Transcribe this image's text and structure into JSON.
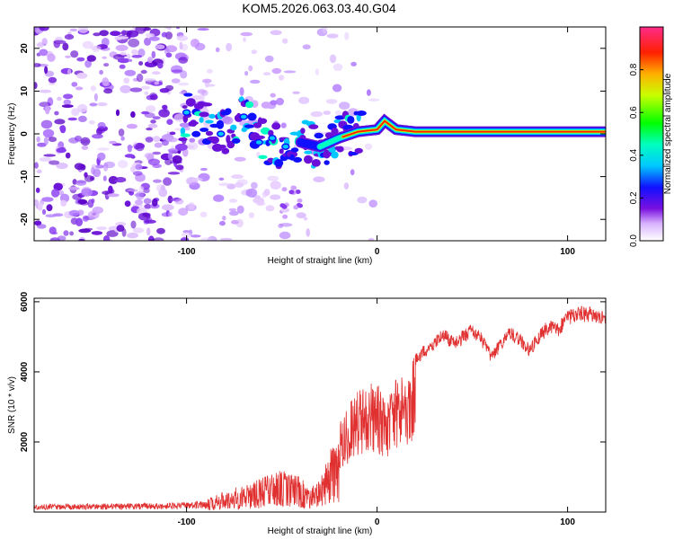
{
  "title": "KOM5.2026.063.03.40.G04",
  "chart_data": [
    {
      "type": "heatmap",
      "xlabel": "Height of straight line (km)",
      "ylabel": "Frequency (Hz)",
      "xlim": [
        -180,
        120
      ],
      "ylim": [
        -25,
        25
      ],
      "xticks": [
        -100,
        0,
        100
      ],
      "yticks": [
        -20,
        -10,
        0,
        10,
        20
      ],
      "colorbar": {
        "label": "Normalized spectral amplitude",
        "range": [
          0,
          1
        ],
        "ticks": [
          "0.0",
          "0.2",
          "0.4",
          "0.6",
          "0.8"
        ],
        "tick_values": [
          0,
          0.2,
          0.4,
          0.6,
          0.8
        ]
      },
      "signal_band": {
        "description_x_range_km": [
          -100,
          120
        ],
        "center_freq_hz": [
          [
            -100,
            5
          ],
          [
            -90,
            2
          ],
          [
            -80,
            0
          ],
          [
            -70,
            4
          ],
          [
            -60,
            -2
          ],
          [
            -50,
            -3
          ],
          [
            -40,
            -2
          ],
          [
            -30,
            -3
          ],
          [
            -20,
            -1
          ],
          [
            -10,
            0.5
          ],
          [
            0,
            1
          ],
          [
            4,
            3
          ],
          [
            10,
            1
          ],
          [
            20,
            0.5
          ],
          [
            40,
            0.5
          ],
          [
            100,
            0.5
          ],
          [
            120,
            0.5
          ]
        ],
        "peak_amplitude": 0.9
      }
    },
    {
      "type": "line",
      "xlabel": "Height of straight line (km)",
      "ylabel": "SNR (10 * v/v)",
      "xlim": [
        -180,
        120
      ],
      "ylim": [
        0,
        6100
      ],
      "xticks": [
        -100,
        0,
        100
      ],
      "yticks": [
        2000,
        4000,
        6000
      ],
      "color": "#e03030",
      "series_envelope": [
        [
          -180,
          220
        ],
        [
          -150,
          240
        ],
        [
          -120,
          250
        ],
        [
          -100,
          280
        ],
        [
          -90,
          380
        ],
        [
          -80,
          600
        ],
        [
          -70,
          800
        ],
        [
          -60,
          1000
        ],
        [
          -50,
          1200
        ],
        [
          -40,
          1000
        ],
        [
          -35,
          700
        ],
        [
          -30,
          900
        ],
        [
          -25,
          1700
        ],
        [
          -20,
          2600
        ],
        [
          -15,
          3100
        ],
        [
          -10,
          3500
        ],
        [
          -5,
          3800
        ],
        [
          0,
          3700
        ],
        [
          5,
          3300
        ],
        [
          10,
          3800
        ],
        [
          15,
          4200
        ],
        [
          20,
          4500
        ],
        [
          25,
          4800
        ],
        [
          30,
          5000
        ],
        [
          35,
          5300
        ],
        [
          40,
          5000
        ],
        [
          45,
          5200
        ],
        [
          50,
          5400
        ],
        [
          55,
          5100
        ],
        [
          60,
          4600
        ],
        [
          65,
          5000
        ],
        [
          70,
          5300
        ],
        [
          75,
          5100
        ],
        [
          80,
          4800
        ],
        [
          85,
          5200
        ],
        [
          90,
          5500
        ],
        [
          95,
          5400
        ],
        [
          100,
          5800
        ],
        [
          110,
          5900
        ],
        [
          120,
          5700
        ]
      ]
    }
  ]
}
